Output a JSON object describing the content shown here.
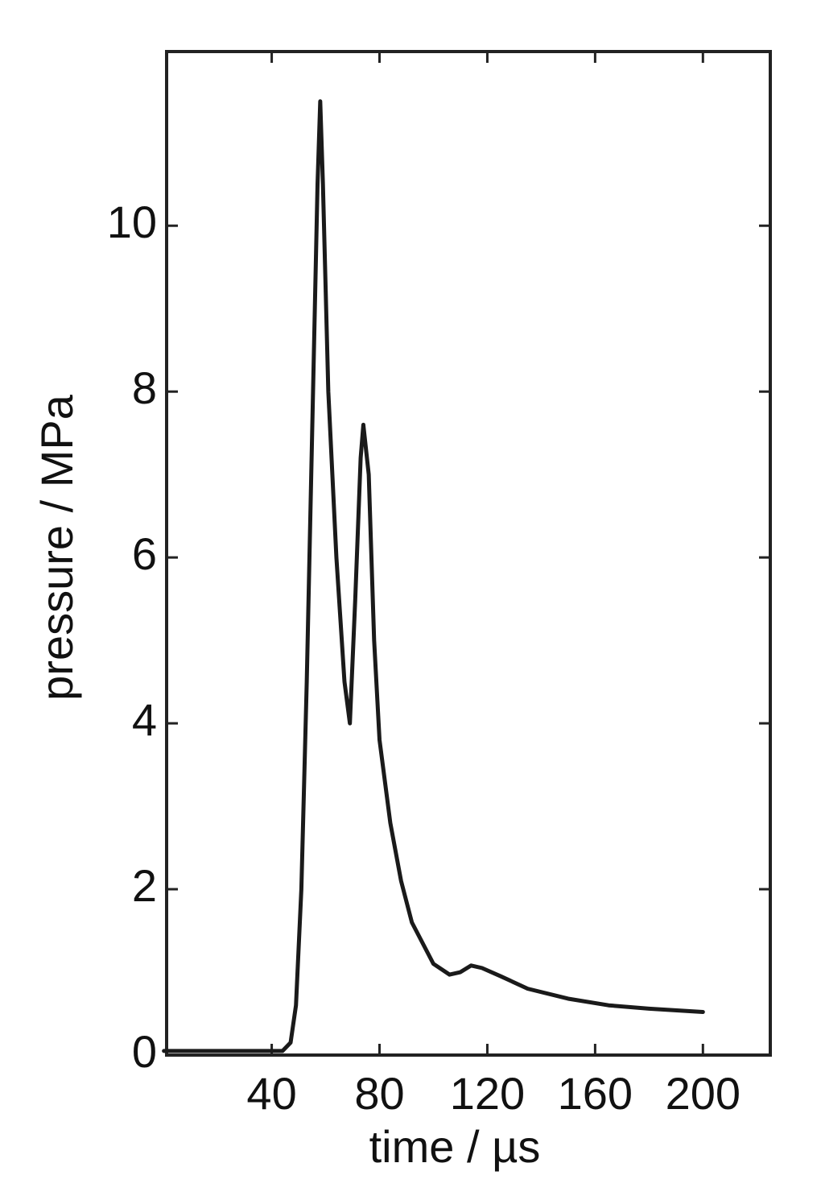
{
  "chart_data": {
    "type": "line",
    "x_label": "time / µs",
    "y_label": "pressure / MPa",
    "x": [
      0,
      44,
      47,
      49,
      51,
      53,
      55,
      57,
      58,
      59,
      61,
      64,
      67,
      69,
      71,
      73,
      74,
      76,
      78,
      80,
      84,
      88,
      92,
      96,
      100,
      106,
      110,
      114,
      118,
      125,
      135,
      150,
      165,
      180,
      200
    ],
    "series": [
      {
        "color": "#1a1a1a",
        "values": [
          0.05,
          0.05,
          0.15,
          0.6,
          2,
          4.5,
          7.5,
          10.5,
          11.5,
          10.5,
          8,
          6,
          4.5,
          4,
          5.5,
          7.2,
          7.6,
          7,
          5,
          3.8,
          2.8,
          2.1,
          1.6,
          1.35,
          1.1,
          0.97,
          1.0,
          1.08,
          1.05,
          0.95,
          0.8,
          0.68,
          0.6,
          0.56,
          0.52
        ]
      }
    ],
    "xlim": [
      1,
      225
    ],
    "xticks": [
      40,
      80,
      120,
      160,
      200
    ],
    "ylim": [
      0,
      12.1
    ],
    "yticks": [
      0,
      2,
      4,
      6,
      8,
      10
    ],
    "grid": false
  }
}
